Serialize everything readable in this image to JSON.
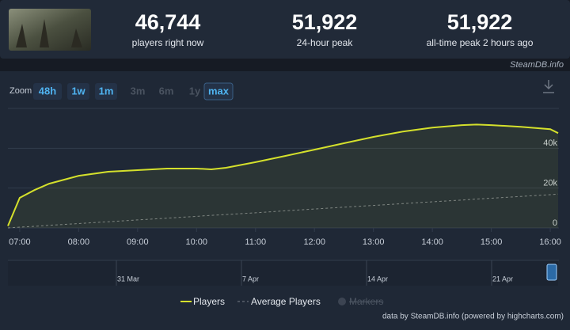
{
  "stats": [
    {
      "value": "46,744",
      "label": "players right now"
    },
    {
      "value": "51,922",
      "label": "24-hour peak"
    },
    {
      "value": "51,922",
      "label": "all-time peak 2 hours ago"
    }
  ],
  "brand": "SteamDB.info",
  "zoom": {
    "label": "Zoom",
    "buttons": [
      {
        "label": "48h",
        "enabled": true,
        "selected": false
      },
      {
        "label": "1w",
        "enabled": true,
        "selected": false
      },
      {
        "label": "1m",
        "enabled": true,
        "selected": false
      },
      {
        "label": "3m",
        "enabled": false,
        "selected": false
      },
      {
        "label": "6m",
        "enabled": false,
        "selected": false
      },
      {
        "label": "1y",
        "enabled": false,
        "selected": false
      },
      {
        "label": "max",
        "enabled": true,
        "selected": true
      }
    ]
  },
  "chart_data": {
    "type": "line",
    "x": [
      "06:48",
      "07:00",
      "07:15",
      "07:30",
      "08:00",
      "08:30",
      "09:00",
      "09:30",
      "10:00",
      "10:15",
      "10:30",
      "11:00",
      "11:30",
      "12:00",
      "12:30",
      "13:00",
      "13:30",
      "14:00",
      "14:30",
      "14:45",
      "15:00",
      "15:30",
      "16:00",
      "16:08"
    ],
    "series": [
      {
        "name": "Players",
        "color": "#d4e02c",
        "values": [
          1000,
          15100,
          19000,
          22200,
          26200,
          28200,
          29000,
          29800,
          29800,
          29400,
          30200,
          33000,
          36100,
          39300,
          42500,
          45700,
          48400,
          50400,
          51600,
          51900,
          51600,
          50800,
          49600,
          47600
        ]
      },
      {
        "name": "Average Players",
        "color": "#7a808a",
        "dashed": true,
        "values": [
          0,
          400,
          800,
          1300,
          2200,
          3100,
          4000,
          4900,
          5800,
          6300,
          6700,
          7600,
          8600,
          9500,
          10400,
          11300,
          12200,
          13100,
          14000,
          14500,
          14900,
          15800,
          16700,
          17000
        ]
      }
    ],
    "markers_label": "Markers",
    "xlim": [
      "06:48",
      "16:08"
    ],
    "xticks": [
      "07:00",
      "08:00",
      "09:00",
      "10:00",
      "11:00",
      "12:00",
      "13:00",
      "14:00",
      "15:00",
      "16:00"
    ],
    "ylim": [
      0,
      60000
    ],
    "yticks": [
      {
        "value": 0,
        "label": "0"
      },
      {
        "value": 20000,
        "label": "20k"
      },
      {
        "value": 40000,
        "label": "40k"
      }
    ],
    "grid": true
  },
  "navigator": {
    "labels": [
      "31 Mar",
      "7 Apr",
      "14 Apr",
      "21 Apr"
    ]
  },
  "credit": "data by SteamDB.info (powered by highcharts.com)"
}
